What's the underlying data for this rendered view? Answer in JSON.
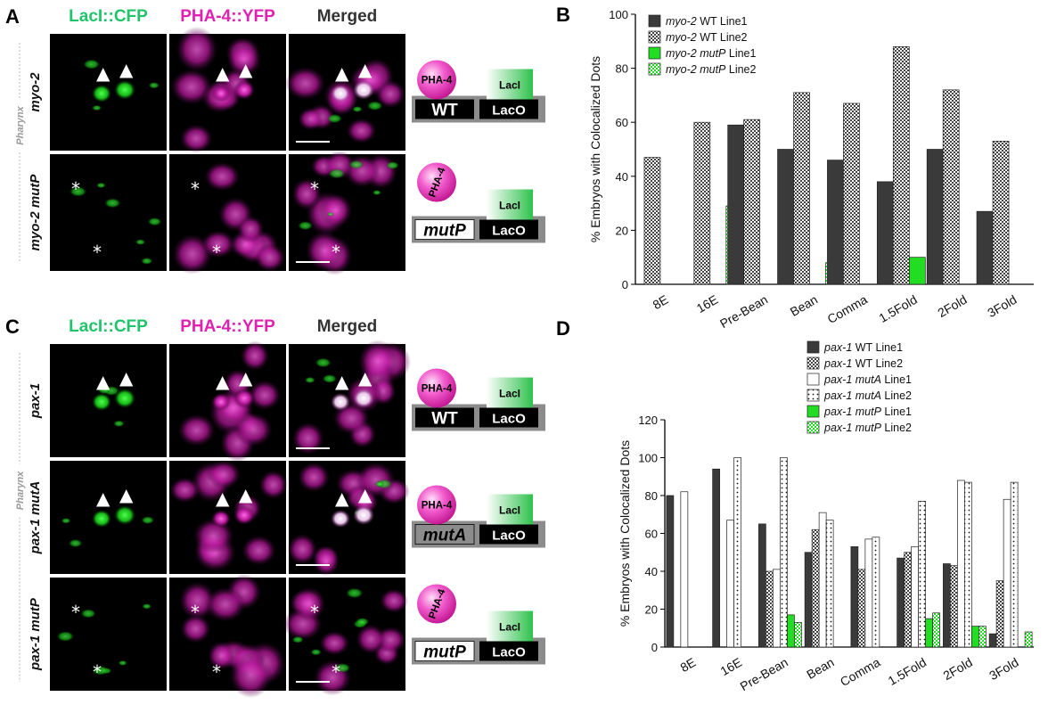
{
  "panels": {
    "A": {
      "label": "A",
      "channels": [
        "LacI::CFP",
        "PHA-4::YFP",
        "Merged"
      ],
      "rows": [
        "myo-2",
        "myo-2 mutP"
      ],
      "side_label": "Pharynx",
      "diagrams": [
        {
          "protein": "PHA-4",
          "lacI": "LacI",
          "site": "WT",
          "lacO": "LacO"
        },
        {
          "protein": "PHA-4",
          "lacI": "LacI",
          "site": "mutP",
          "lacO": "LacO"
        }
      ]
    },
    "B": {
      "label": "B"
    },
    "C": {
      "label": "C",
      "channels": [
        "LacI::CFP",
        "PHA-4::YFP",
        "Merged"
      ],
      "rows": [
        "pax-1",
        "pax-1 mutA",
        "pax-1 mutP"
      ],
      "side_label": "Pharynx",
      "diagrams": [
        {
          "protein": "PHA-4",
          "lacI": "LacI",
          "site": "WT",
          "lacO": "LacO"
        },
        {
          "protein": "PHA-4",
          "lacI": "LacI",
          "site": "mutA",
          "lacO": "LacO"
        },
        {
          "protein": "PHA-4",
          "lacI": "LacI",
          "site": "mutP",
          "lacO": "LacO"
        }
      ]
    },
    "D": {
      "label": "D"
    }
  },
  "colors": {
    "green": "#21c46a",
    "magenta": "#e020b0",
    "bar_dark": "#3a3a3a",
    "bar_green": "#22dd22"
  },
  "chart_data": [
    {
      "type": "bar",
      "panel": "B",
      "categories": [
        "8E",
        "16E",
        "Pre-Bean",
        "Bean",
        "Comma",
        "1.5Fold",
        "2Fold",
        "3Fold"
      ],
      "ylabel": "% Embryos with Colocalized Dots",
      "ylim": [
        0,
        100
      ],
      "yticks": [
        0,
        20,
        40,
        60,
        80,
        100
      ],
      "legend_position": "top-left",
      "series": [
        {
          "gene": "myo-2",
          "tag": "WT",
          "line": "Line1",
          "style": "dark",
          "values": [
            null,
            null,
            59,
            50,
            46,
            38,
            50,
            27
          ]
        },
        {
          "gene": "myo-2",
          "tag": "WT",
          "line": "Line2",
          "style": "check",
          "values": [
            47,
            60,
            61,
            71,
            67,
            88,
            72,
            53
          ]
        },
        {
          "gene": "myo-2",
          "tag": "mutP",
          "line": "Line1",
          "style": "green",
          "values": [
            null,
            null,
            null,
            null,
            null,
            10,
            null,
            null
          ]
        },
        {
          "gene": "myo-2",
          "tag": "mutP",
          "line": "Line2",
          "style": "greencheck",
          "values": [
            null,
            29,
            null,
            8,
            null,
            null,
            null,
            null
          ]
        }
      ]
    },
    {
      "type": "bar",
      "panel": "D",
      "categories": [
        "8E",
        "16E",
        "Pre-Bean",
        "Bean",
        "Comma",
        "1.5Fold",
        "2Fold",
        "3Fold"
      ],
      "ylabel": "% Embryos with Colocalized Dots",
      "ylim": [
        0,
        120
      ],
      "yticks": [
        0,
        20,
        40,
        60,
        80,
        100,
        120
      ],
      "legend_position": "top-right",
      "series": [
        {
          "gene": "pax-1",
          "tag": "WT",
          "line": "Line1",
          "style": "dark",
          "values": [
            80,
            94,
            65,
            50,
            53,
            47,
            44,
            7
          ]
        },
        {
          "gene": "pax-1",
          "tag": "WT",
          "line": "Line2",
          "style": "check",
          "values": [
            null,
            null,
            40,
            62,
            41,
            50,
            43,
            35
          ]
        },
        {
          "gene": "pax-1",
          "tag": "mutA",
          "line": "Line1",
          "style": "white",
          "values": [
            82,
            67,
            41,
            71,
            57,
            53,
            88,
            78
          ]
        },
        {
          "gene": "pax-1",
          "tag": "mutA",
          "line": "Line2",
          "style": "dots",
          "values": [
            null,
            100,
            100,
            67,
            58,
            77,
            87,
            87
          ]
        },
        {
          "gene": "pax-1",
          "tag": "mutP",
          "line": "Line1",
          "style": "green",
          "values": [
            null,
            null,
            17,
            null,
            null,
            15,
            11,
            null
          ]
        },
        {
          "gene": "pax-1",
          "tag": "mutP",
          "line": "Line2",
          "style": "greencheck",
          "values": [
            null,
            null,
            13,
            null,
            null,
            18,
            11,
            8
          ]
        }
      ]
    }
  ]
}
